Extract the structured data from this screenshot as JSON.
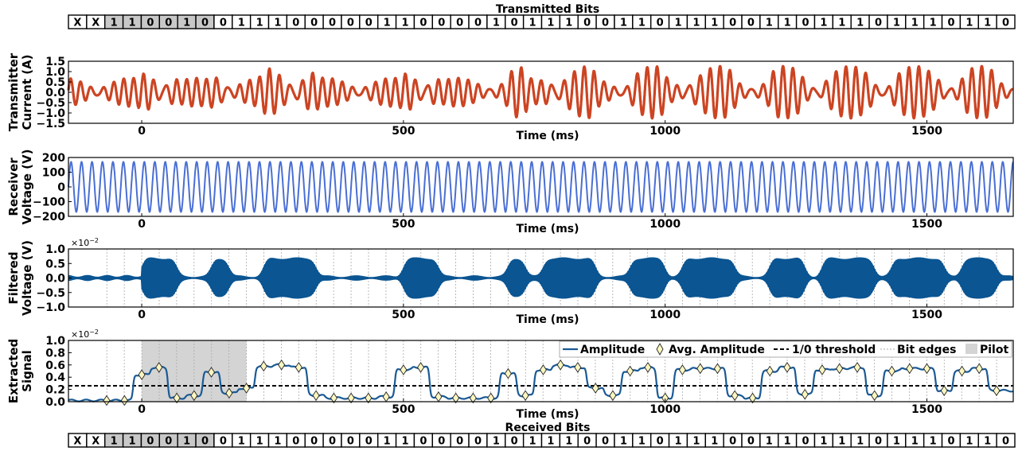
{
  "transmitted_bits": {
    "title": "Transmitted Bits",
    "bits": [
      "X",
      "X",
      "1",
      "1",
      "0",
      "0",
      "1",
      "0",
      "0",
      "1",
      "1",
      "1",
      "0",
      "0",
      "0",
      "0",
      "0",
      "1",
      "1",
      "0",
      "0",
      "0",
      "0",
      "1",
      "0",
      "1",
      "1",
      "1",
      "0",
      "0",
      "1",
      "1",
      "0",
      "1",
      "1",
      "1",
      "0",
      "0",
      "1",
      "1",
      "0",
      "1",
      "1",
      "1",
      "0",
      "1",
      "1",
      "1",
      "0",
      "1",
      "1",
      "0"
    ],
    "pilot_bits": [
      2,
      3,
      4,
      5,
      6,
      7
    ]
  },
  "received_bits": {
    "title": "Received Bits",
    "bits": [
      "X",
      "X",
      "1",
      "1",
      "0",
      "0",
      "1",
      "0",
      "0",
      "1",
      "1",
      "1",
      "0",
      "0",
      "0",
      "0",
      "0",
      "1",
      "1",
      "0",
      "0",
      "0",
      "0",
      "1",
      "0",
      "1",
      "1",
      "1",
      "0",
      "0",
      "1",
      "1",
      "0",
      "1",
      "1",
      "1",
      "0",
      "0",
      "1",
      "1",
      "0",
      "1",
      "1",
      "1",
      "0",
      "1",
      "1",
      "1",
      "0",
      "1",
      "1",
      "0"
    ],
    "pilot_bits": [
      2,
      3,
      4,
      5,
      6,
      7
    ]
  },
  "colors": {
    "current": "#cc4422",
    "voltage": "#4a6fd4",
    "filtered": "#0a5592",
    "amplitude": "#1a5a95",
    "marker_fill": "#fbf6c0",
    "pilot_shade": "#d4d4d4",
    "pilot_bit_fill": "#c8c8c8"
  },
  "chart_data": [
    {
      "type": "line",
      "panel": "transmitter-current",
      "ylabel": [
        "Transmitter",
        "Current (A)"
      ],
      "xlabel": "Time (ms)",
      "xlim": [
        -140,
        1665
      ],
      "ylim": [
        -1.5,
        1.5
      ],
      "yticks": [
        "1.5",
        "1.0",
        "0.5",
        "0.0",
        "−0.5",
        "−1.0",
        "−1.5"
      ],
      "xticks": [
        "0",
        "500",
        "1000",
        "1500"
      ],
      "series": [
        {
          "carrier_hz": 50,
          "pilot_freq_hz": 58,
          "amp_range": [
            0.55,
            1.15
          ]
        }
      ]
    },
    {
      "type": "line",
      "panel": "receiver-voltage",
      "ylabel": [
        "Receiver",
        "Voltage (V)"
      ],
      "xlabel": "Time (ms)",
      "xlim": [
        -140,
        1665
      ],
      "ylim": [
        -200,
        200
      ],
      "yticks": [
        "200",
        "100",
        "0",
        "−100",
        "−200"
      ],
      "xticks": [
        "0",
        "500",
        "1000",
        "1500"
      ],
      "series": [
        {
          "frequency_hz": 50,
          "amplitude": 170
        }
      ]
    },
    {
      "type": "area",
      "panel": "filtered-voltage",
      "ylabel": [
        "Filtered",
        "Voltage (V)"
      ],
      "xlabel": "Time (ms)",
      "xlim": [
        -140,
        1665
      ],
      "ylim": [
        -1.0,
        1.0
      ],
      "yticks": [
        "1.0",
        "0.5",
        "0.0",
        "−0.5",
        "−1.0"
      ],
      "scale_label": "×10",
      "scale_exp": "−2",
      "xticks": [
        "0",
        "500",
        "1000",
        "1500"
      ],
      "grid": "bit edges, dotted vertical lines every 20 ms"
    },
    {
      "type": "line",
      "panel": "extracted-signal",
      "ylabel": [
        "Extracted",
        "Signal"
      ],
      "xlabel": "Time (ms)",
      "xlim": [
        -140,
        1665
      ],
      "ylim": [
        0,
        1.0
      ],
      "yticks": [
        "1.0",
        "0.8",
        "0.6",
        "0.4",
        "0.2",
        "0.0"
      ],
      "scale_label": "×10",
      "scale_exp": "−2",
      "xticks": [
        "0",
        "500",
        "1000",
        "1500"
      ],
      "threshold": 0.26,
      "pilot_range": [
        0,
        200
      ],
      "bit_period_ms": 33.3,
      "legend": [
        "Amplitude",
        "Avg. Amplitude",
        "1/0 threshold",
        "Bit edges",
        "Pilot"
      ],
      "legend_position": "top-right",
      "avg_amplitude_x": [
        -67,
        -33,
        0,
        33,
        67,
        100,
        133,
        167,
        200,
        233,
        267,
        300,
        333,
        367,
        400,
        433,
        467,
        500,
        533,
        567,
        600,
        633,
        667,
        700,
        733,
        767,
        800,
        833,
        867,
        900,
        933,
        967,
        1000,
        1033,
        1067,
        1100,
        1133,
        1167,
        1200,
        1233,
        1267,
        1300,
        1333,
        1367,
        1400,
        1433,
        1467,
        1500,
        1533,
        1567,
        1600,
        1633
      ],
      "avg_amplitude_y": [
        0.02,
        0.02,
        0.44,
        0.56,
        0.06,
        0.1,
        0.48,
        0.14,
        0.22,
        0.58,
        0.6,
        0.56,
        0.1,
        0.06,
        0.06,
        0.06,
        0.08,
        0.52,
        0.56,
        0.08,
        0.06,
        0.06,
        0.06,
        0.46,
        0.1,
        0.52,
        0.6,
        0.56,
        0.22,
        0.1,
        0.5,
        0.56,
        0.06,
        0.52,
        0.54,
        0.54,
        0.1,
        0.06,
        0.5,
        0.56,
        0.12,
        0.52,
        0.54,
        0.56,
        0.1,
        0.5,
        0.54,
        0.54,
        0.18,
        0.5,
        0.54,
        0.18
      ]
    }
  ]
}
